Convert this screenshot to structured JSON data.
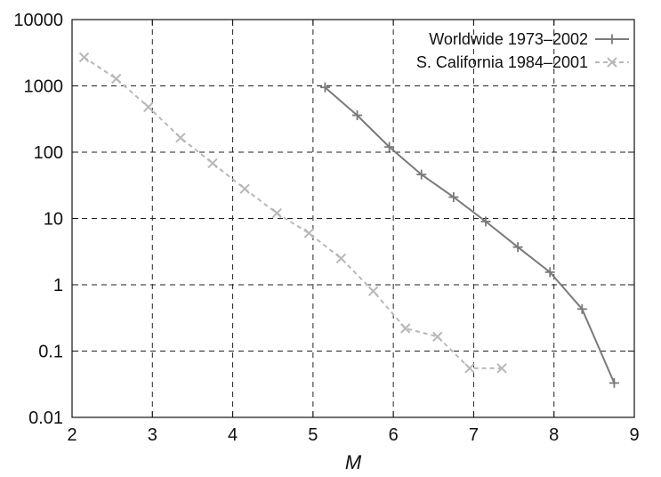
{
  "chart_data": {
    "type": "line",
    "title": "",
    "xlabel": "M",
    "ylabel": "",
    "xlim": [
      2,
      9
    ],
    "ylim": [
      0.01,
      10000
    ],
    "yscale": "log",
    "grid": true,
    "legend_position": "top-right",
    "x_ticks": [
      "2",
      "3",
      "4",
      "5",
      "6",
      "7",
      "8",
      "9"
    ],
    "y_ticks": [
      "0.01",
      "0.1",
      "1",
      "10",
      "100",
      "1000",
      "10000"
    ],
    "series": [
      {
        "name": "Worldwide 1973–2002",
        "color": "#7a7a7a",
        "line_style": "solid",
        "marker": "+",
        "x": [
          5.15,
          5.55,
          5.95,
          6.35,
          6.75,
          7.15,
          7.55,
          7.95,
          8.35,
          8.75
        ],
        "y": [
          950,
          360,
          120,
          46,
          21,
          9,
          3.7,
          1.55,
          0.43,
          0.033
        ]
      },
      {
        "name": "S. California 1984–2001",
        "color": "#b8b8b8",
        "line_style": "dashed",
        "marker": "x",
        "x": [
          2.15,
          2.55,
          2.95,
          3.35,
          3.75,
          4.15,
          4.55,
          4.95,
          5.35,
          5.75,
          6.15,
          6.55,
          6.95,
          7.35
        ],
        "y": [
          2700,
          1280,
          480,
          165,
          68,
          28,
          12,
          6,
          2.5,
          0.8,
          0.22,
          0.165,
          0.055,
          0.055
        ]
      }
    ]
  }
}
